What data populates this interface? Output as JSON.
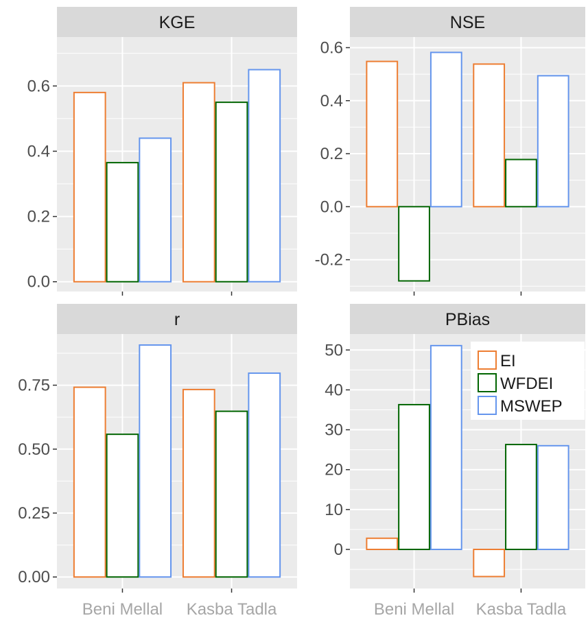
{
  "chart_data": [
    {
      "type": "bar",
      "title": "KGE",
      "categories": [
        "Beni Mellal",
        "Kasba Tadla"
      ],
      "series": [
        {
          "name": "EI",
          "values": [
            0.58,
            0.61
          ]
        },
        {
          "name": "WFDEI",
          "values": [
            0.365,
            0.55
          ]
        },
        {
          "name": "MSWEP",
          "values": [
            0.44,
            0.65
          ]
        }
      ],
      "ylim": [
        -0.03,
        0.75
      ],
      "yticks": [
        0.0,
        0.2,
        0.4,
        0.6
      ],
      "ytick_labels": [
        "0.0",
        "0.2",
        "0.4",
        "0.6"
      ]
    },
    {
      "type": "bar",
      "title": "NSE",
      "categories": [
        "Beni Mellal",
        "Kasba Tadla"
      ],
      "series": [
        {
          "name": "EI",
          "values": [
            0.548,
            0.538
          ]
        },
        {
          "name": "WFDEI",
          "values": [
            -0.28,
            0.178
          ]
        },
        {
          "name": "MSWEP",
          "values": [
            0.582,
            0.494
          ]
        }
      ],
      "ylim": [
        -0.32,
        0.64
      ],
      "yticks": [
        -0.2,
        0.0,
        0.2,
        0.4,
        0.6
      ],
      "ytick_labels": [
        "-0.2",
        "0.0",
        "0.2",
        "0.4",
        "0.6"
      ]
    },
    {
      "type": "bar",
      "title": "r",
      "categories": [
        "Beni Mellal",
        "Kasba Tadla"
      ],
      "series": [
        {
          "name": "EI",
          "values": [
            0.742,
            0.733
          ]
        },
        {
          "name": "WFDEI",
          "values": [
            0.558,
            0.648
          ]
        },
        {
          "name": "MSWEP",
          "values": [
            0.907,
            0.797
          ]
        }
      ],
      "ylim": [
        -0.045,
        0.95
      ],
      "yticks": [
        0.0,
        0.25,
        0.5,
        0.75
      ],
      "ytick_labels": [
        "0.00",
        "0.25",
        "0.50",
        "0.75"
      ]
    },
    {
      "type": "bar",
      "title": "PBias",
      "categories": [
        "Beni Mellal",
        "Kasba Tadla"
      ],
      "series": [
        {
          "name": "EI",
          "values": [
            2.8,
            -6.8
          ]
        },
        {
          "name": "WFDEI",
          "values": [
            36.3,
            26.3
          ]
        },
        {
          "name": "MSWEP",
          "values": [
            51.1,
            26.0
          ]
        }
      ],
      "ylim": [
        -9.8,
        54.0
      ],
      "yticks": [
        0,
        10,
        20,
        30,
        40,
        50
      ],
      "ytick_labels": [
        "0",
        "10",
        "20",
        "30",
        "40",
        "50"
      ]
    }
  ],
  "legend": {
    "placement": "inside-top-right of PBias panel",
    "items": [
      {
        "label": "EI",
        "color": "#ed7d31"
      },
      {
        "label": "WFDEI",
        "color": "#006400"
      },
      {
        "label": "MSWEP",
        "color": "#6495ed"
      }
    ]
  },
  "colors": {
    "EI": "#ed7d31",
    "WFDEI": "#006400",
    "MSWEP": "#6495ed",
    "panel_background": "#ebebeb",
    "strip_background": "#d9d9d9",
    "grid": "#ffffff",
    "category_label": "#a6a6a6"
  },
  "grid": true
}
